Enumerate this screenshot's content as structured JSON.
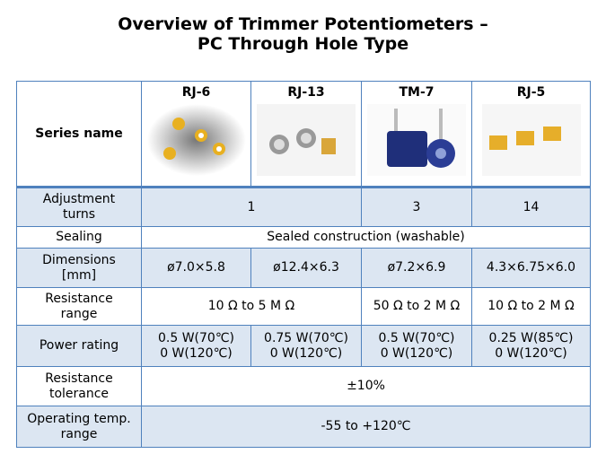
{
  "title": [
    "Overview of Trimmer Potentiometers –",
    "PC Through Hole Type"
  ],
  "table": {
    "header": [
      "Series name",
      "RJ-6",
      "RJ-13",
      "TM-7",
      "RJ-5"
    ],
    "rows": [
      {
        "label": [
          "Adjustment",
          "turns"
        ],
        "cells": [
          "1",
          "3",
          "14"
        ]
      },
      {
        "label": [
          "Sealing"
        ],
        "cells": [
          "Sealed construction (washable)"
        ]
      },
      {
        "label": [
          "Dimensions",
          "[mm]"
        ],
        "cells": [
          "ø7.0×5.8",
          "ø12.4×6.3",
          "ø7.2×6.9",
          "4.3×6.75×6.0"
        ]
      },
      {
        "label": [
          "Resistance",
          "range"
        ],
        "cells": [
          "10 Ω to 5 M Ω",
          "50 Ω to 2 M Ω",
          "10 Ω to 2 M Ω"
        ]
      },
      {
        "label": [
          "Power rating"
        ],
        "cells": [
          [
            "0.5 W(70℃)",
            "0 W(120℃)"
          ],
          [
            "0.75 W(70℃)",
            "0 W(120℃)"
          ],
          [
            "0.5 W(70℃)",
            "0 W(120℃)"
          ],
          [
            "0.25 W(85℃)",
            "0 W(120℃)"
          ]
        ]
      },
      {
        "label": [
          "Resistance",
          "tolerance"
        ],
        "cells": [
          "±10%"
        ]
      },
      {
        "label": [
          "Operating temp.",
          "range"
        ],
        "cells": [
          "-55 to +120℃"
        ]
      }
    ]
  }
}
